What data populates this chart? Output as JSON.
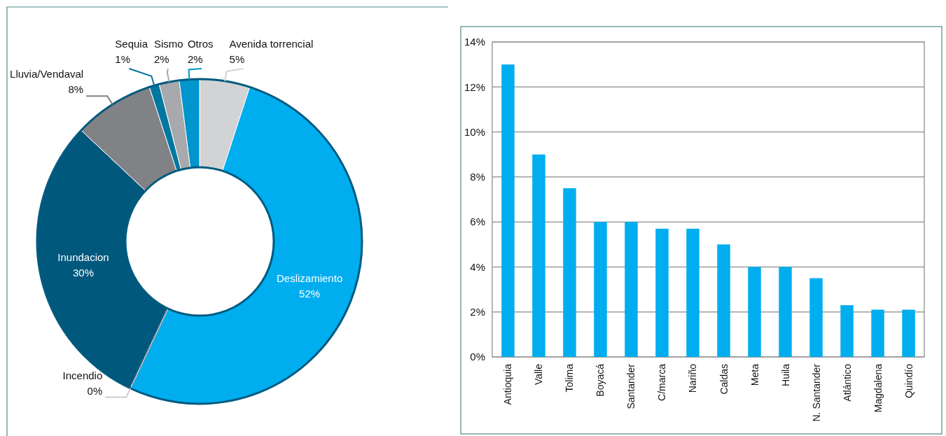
{
  "chart_data": [
    {
      "type": "donut",
      "categories": [
        "Avenida torrencial",
        "Deslizamiento",
        "Incendio",
        "Inundacion",
        "Lluvia/Vendaval",
        "Sequia",
        "Sismo",
        "Otros"
      ],
      "values": [
        5,
        52,
        0,
        30,
        8,
        1,
        2,
        2
      ],
      "colors": [
        "#d1d3d4",
        "#00aeef",
        "#ffffff",
        "#00587c",
        "#808285",
        "#0077a0",
        "#a7a9ac",
        "#0095cc"
      ],
      "value_labels": [
        "5%",
        "52%",
        "0%",
        "30%",
        "8%",
        "1%",
        "2%",
        "2%"
      ]
    },
    {
      "type": "bar",
      "categories": [
        "Antioquia",
        "Valle",
        "Tolima",
        "Boyacá",
        "Santander",
        "C/marca",
        "Nariño",
        "Caldas",
        "Meta",
        "Huila",
        "N. Santander",
        "Atlántico",
        "Magdalena",
        "Quindío"
      ],
      "values": [
        13,
        9,
        7.5,
        6,
        6,
        5.7,
        5.7,
        5,
        4,
        4,
        3.5,
        2.3,
        2.1,
        2.1
      ],
      "color": "#00aeef",
      "ylim": [
        0,
        14
      ],
      "yticks": [
        {
          "value": 0,
          "label": "0%"
        },
        {
          "value": 2,
          "label": "2%"
        },
        {
          "value": 4,
          "label": "4%"
        },
        {
          "value": 6,
          "label": "6%"
        },
        {
          "value": 8,
          "label": "8%"
        },
        {
          "value": 10,
          "label": "10%"
        },
        {
          "value": 12,
          "label": "12%"
        },
        {
          "value": 14,
          "label": "14%"
        }
      ],
      "grid": "y"
    }
  ]
}
